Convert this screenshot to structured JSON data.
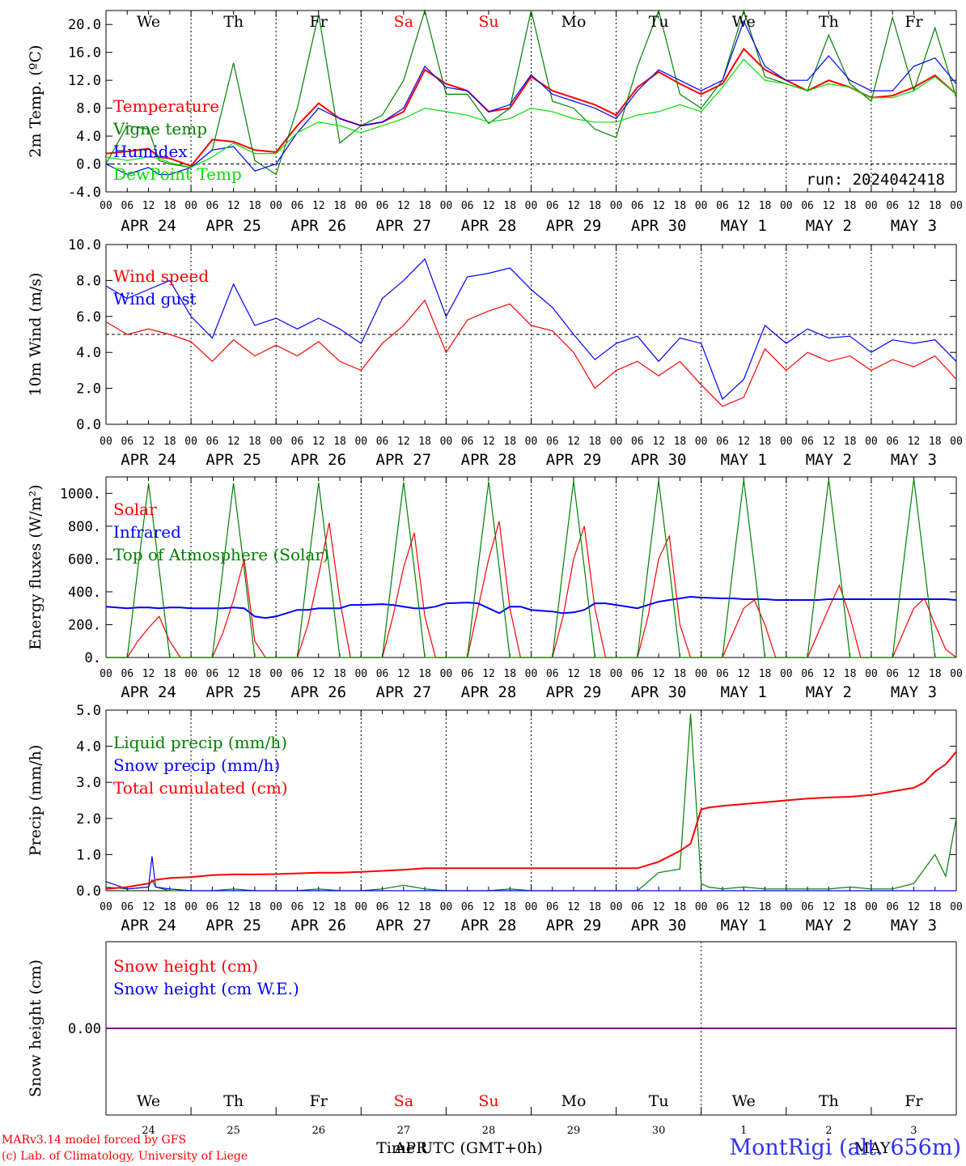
{
  "meteogram": {
    "station_label": "MontRigi (alt. 656m)",
    "run_label": "run: 2024042418",
    "credits": [
      "MARv3.14 model forced by GFS",
      "(c) Lab. of Climatology, University of Liege"
    ],
    "time_axis_label": "Time UTC (GMT+0h)",
    "overlap_label_april": "APR",
    "overlap_label_may": "MAY",
    "colors": {
      "red": "#ff0000",
      "green": "#008000",
      "blue": "#0000ff",
      "lightgreen": "#00e000",
      "purple": "#800080",
      "grid": "#000000"
    },
    "day_names": [
      {
        "name": "We",
        "weekend": false
      },
      {
        "name": "Th",
        "weekend": false
      },
      {
        "name": "Fr",
        "weekend": false
      },
      {
        "name": "Sa",
        "weekend": true
      },
      {
        "name": "Su",
        "weekend": true
      },
      {
        "name": "Mo",
        "weekend": false
      },
      {
        "name": "Tu",
        "weekend": false
      },
      {
        "name": "We",
        "weekend": false
      },
      {
        "name": "Th",
        "weekend": false
      },
      {
        "name": "Fr",
        "weekend": false
      }
    ],
    "date_labels": [
      "APR 24",
      "APR 25",
      "APR 26",
      "APR 27",
      "APR 28",
      "APR 29",
      "APR 30",
      "MAY  1",
      "MAY  2",
      "MAY  3"
    ],
    "day_numbers": [
      "24",
      "25",
      "26",
      "27",
      "28",
      "29",
      "30",
      "1",
      "2",
      "3"
    ],
    "hour_ticks": [
      "00",
      "06",
      "12",
      "18"
    ],
    "end_tick": "00"
  },
  "chart_data": [
    {
      "type": "line",
      "ylabel": "2m Temp. (ºC)",
      "ylim": [
        -4,
        22
      ],
      "yticks": [
        "-4.0",
        "0.0",
        "4.0",
        "8.0",
        "12.0",
        "16.0",
        "20.0"
      ],
      "ytick_values": [
        -4,
        0,
        4,
        8,
        12,
        16,
        20
      ],
      "reference_line": 0,
      "x": [
        0,
        6,
        12,
        15,
        18,
        24,
        30,
        36,
        42,
        48,
        54,
        60,
        66,
        72,
        78,
        84,
        90,
        96,
        102,
        108,
        114,
        120,
        126,
        132,
        138,
        144,
        150,
        156,
        162,
        168,
        174,
        180,
        186,
        192,
        198,
        204,
        210,
        216,
        222,
        228,
        234,
        240
      ],
      "series": [
        {
          "name": "Temperature",
          "color": "#ff0000",
          "values": [
            1.5,
            1.8,
            2.2,
            1.0,
            0.8,
            -0.3,
            3.5,
            3.2,
            2.0,
            1.7,
            5.5,
            8.7,
            6.5,
            5.5,
            6.0,
            7.5,
            13.5,
            11.5,
            10.5,
            7.5,
            8.0,
            12.5,
            10.5,
            9.5,
            8.5,
            7.0,
            11.0,
            13.2,
            11.5,
            10.0,
            11.5,
            16.5,
            13.5,
            12.0,
            10.5,
            12.0,
            11.0,
            9.5,
            9.8,
            11.0,
            12.7,
            10.0
          ]
        },
        {
          "name": "Vigne temp",
          "color": "#008000",
          "values": [
            0.0,
            5.5,
            5.0,
            0.5,
            0.0,
            -0.5,
            2.0,
            14.5,
            0.5,
            -1.5,
            8.0,
            21.5,
            3.0,
            5.5,
            7.0,
            12.0,
            22.0,
            10.0,
            10.0,
            5.8,
            8.0,
            22.0,
            9.0,
            8.0,
            5.0,
            3.8,
            14.0,
            22.0,
            10.0,
            8.0,
            12.0,
            22.0,
            12.5,
            11.5,
            10.5,
            18.5,
            11.5,
            9.0,
            21.0,
            10.5,
            19.5,
            9.5
          ]
        },
        {
          "name": "Humidex",
          "color": "#0000ff",
          "values": [
            0.0,
            -1.5,
            -0.5,
            -1.5,
            -1.5,
            -0.5,
            2.0,
            2.5,
            -1.0,
            0.0,
            4.5,
            8.0,
            6.5,
            5.5,
            6.0,
            8.0,
            14.0,
            11.0,
            10.5,
            7.5,
            8.5,
            12.8,
            10.0,
            9.0,
            8.0,
            6.5,
            10.5,
            13.5,
            12.0,
            10.5,
            12.0,
            20.5,
            14.0,
            12.0,
            12.0,
            15.5,
            12.0,
            10.5,
            10.5,
            14.0,
            15.2,
            11.5
          ]
        },
        {
          "name": "DewPoint Temp",
          "color": "#00e000",
          "values": [
            1.0,
            0.5,
            1.0,
            0.8,
            0.2,
            -0.5,
            1.0,
            3.0,
            1.5,
            1.5,
            4.5,
            6.0,
            5.5,
            4.5,
            5.5,
            6.5,
            8.0,
            7.5,
            7.0,
            6.0,
            6.5,
            8.0,
            7.5,
            6.5,
            6.0,
            6.0,
            7.0,
            7.5,
            8.5,
            7.5,
            11.0,
            15.0,
            12.0,
            11.5,
            10.5,
            11.5,
            11.0,
            9.5,
            9.5,
            10.5,
            12.5,
            10.0
          ]
        }
      ]
    },
    {
      "type": "line",
      "ylabel": "10m Wind (m/s)",
      "ylim": [
        0,
        10
      ],
      "yticks": [
        "0.0",
        "2.0",
        "4.0",
        "6.0",
        "8.0",
        "10.0"
      ],
      "ytick_values": [
        0,
        2,
        4,
        6,
        8,
        10
      ],
      "reference_line": 5,
      "x": [
        0,
        6,
        12,
        18,
        24,
        30,
        36,
        42,
        48,
        54,
        60,
        66,
        72,
        78,
        84,
        90,
        96,
        102,
        108,
        114,
        120,
        126,
        132,
        138,
        144,
        150,
        156,
        162,
        168,
        174,
        180,
        186,
        192,
        198,
        204,
        210,
        216,
        222,
        228,
        234,
        240
      ],
      "series": [
        {
          "name": "Wind speed",
          "color": "#ff0000",
          "values": [
            5.7,
            5.0,
            5.3,
            5.0,
            4.6,
            3.5,
            4.7,
            3.8,
            4.4,
            3.8,
            4.6,
            3.5,
            3.0,
            4.5,
            5.5,
            6.9,
            4.0,
            5.8,
            6.3,
            6.7,
            5.5,
            5.2,
            4.0,
            2.0,
            3.0,
            3.5,
            2.7,
            3.5,
            2.2,
            1.0,
            1.5,
            4.2,
            3.0,
            4.0,
            3.5,
            3.8,
            3.0,
            3.6,
            3.2,
            3.8,
            2.5
          ]
        },
        {
          "name": "Wind gust",
          "color": "#0000ff",
          "values": [
            7.7,
            7.0,
            7.5,
            8.0,
            6.0,
            4.8,
            7.8,
            5.5,
            5.9,
            5.3,
            5.9,
            5.3,
            4.5,
            7.0,
            8.0,
            9.2,
            6.0,
            8.2,
            8.4,
            8.7,
            7.5,
            6.5,
            5.0,
            3.6,
            4.5,
            4.9,
            3.5,
            4.8,
            4.5,
            1.4,
            2.5,
            5.5,
            4.5,
            5.3,
            4.8,
            4.9,
            4.0,
            4.7,
            4.5,
            4.7,
            3.5
          ]
        }
      ]
    },
    {
      "type": "line",
      "ylabel": "Energy fluxes (W/m²)",
      "ylim": [
        0,
        1100
      ],
      "yticks": [
        "0.",
        "200.",
        "400.",
        "600.",
        "800.",
        "1000."
      ],
      "ytick_values": [
        0,
        200,
        400,
        600,
        800,
        1000
      ],
      "x": [
        0,
        6,
        9,
        12,
        15,
        18,
        21,
        24,
        30,
        33,
        36,
        39,
        42,
        45,
        48,
        54,
        57,
        60,
        63,
        66,
        69,
        72,
        78,
        81,
        84,
        87,
        90,
        93,
        96,
        102,
        105,
        108,
        111,
        114,
        117,
        120,
        126,
        129,
        132,
        135,
        138,
        141,
        144,
        150,
        153,
        156,
        159,
        162,
        165,
        168,
        174,
        177,
        180,
        183,
        186,
        189,
        192,
        198,
        201,
        204,
        207,
        210,
        213,
        216,
        222,
        225,
        228,
        231,
        234,
        237,
        240
      ],
      "series": [
        {
          "name": "Solar",
          "color": "#ff0000",
          "values": [
            0,
            0,
            100,
            180,
            250,
            100,
            0,
            0,
            0,
            150,
            350,
            600,
            100,
            0,
            0,
            0,
            200,
            500,
            820,
            350,
            0,
            0,
            0,
            250,
            550,
            760,
            250,
            0,
            0,
            0,
            300,
            600,
            830,
            300,
            0,
            0,
            0,
            250,
            600,
            800,
            300,
            0,
            0,
            0,
            250,
            600,
            740,
            200,
            0,
            0,
            0,
            150,
            300,
            350,
            200,
            0,
            0,
            0,
            150,
            300,
            440,
            250,
            0,
            0,
            0,
            150,
            300,
            360,
            200,
            50,
            0
          ]
        },
        {
          "name": "Infrared",
          "color": "#0000ff",
          "values": [
            310,
            300,
            305,
            305,
            300,
            305,
            305,
            300,
            300,
            300,
            305,
            300,
            250,
            240,
            250,
            290,
            290,
            300,
            300,
            300,
            320,
            320,
            325,
            320,
            310,
            300,
            300,
            310,
            330,
            335,
            330,
            300,
            270,
            310,
            310,
            290,
            280,
            270,
            275,
            290,
            330,
            330,
            320,
            300,
            320,
            340,
            350,
            360,
            370,
            365,
            360,
            360,
            355,
            355,
            355,
            350,
            350,
            350,
            350,
            355,
            355,
            355,
            355,
            355,
            355,
            355,
            355,
            355,
            355,
            355,
            350
          ]
        },
        {
          "name": "Top of Atmosphere (Solar)",
          "color": "#008000",
          "values": [
            0,
            0,
            540,
            1060,
            540,
            0,
            0,
            0,
            0,
            540,
            1062,
            540,
            0,
            0,
            0,
            0,
            540,
            1065,
            540,
            0,
            0,
            0,
            0,
            545,
            1068,
            545,
            0,
            0,
            0,
            0,
            545,
            1072,
            545,
            0,
            0,
            0,
            0,
            548,
            1075,
            548,
            0,
            0,
            0,
            0,
            550,
            1078,
            550,
            0,
            0,
            0,
            0,
            552,
            1082,
            552,
            0,
            0,
            0,
            0,
            555,
            1085,
            555,
            0,
            0,
            0,
            0,
            558,
            1088,
            558,
            0,
            0,
            0
          ]
        }
      ]
    },
    {
      "type": "line",
      "ylabel": "Precip (mm/h)",
      "ylim": [
        0,
        5
      ],
      "yticks": [
        "0.0",
        "1.0",
        "2.0",
        "3.0",
        "4.0",
        "5.0"
      ],
      "ytick_values": [
        0,
        1,
        2,
        3,
        4,
        5
      ],
      "x": [
        0,
        6,
        12,
        13,
        14,
        18,
        24,
        30,
        36,
        42,
        48,
        54,
        60,
        66,
        72,
        78,
        84,
        90,
        96,
        102,
        108,
        114,
        120,
        126,
        132,
        138,
        144,
        150,
        156,
        162,
        165,
        168,
        170,
        174,
        180,
        186,
        192,
        198,
        204,
        210,
        216,
        222,
        228,
        231,
        234,
        237,
        240
      ],
      "series": [
        {
          "name": "Liquid precip (mm/h)",
          "color": "#008000",
          "values": [
            0.1,
            0.05,
            0.1,
            0.3,
            0.1,
            0.0,
            0.0,
            0.0,
            0.05,
            0.0,
            0.0,
            0.0,
            0.05,
            0.0,
            0.0,
            0.05,
            0.15,
            0.05,
            0.0,
            0.0,
            0.0,
            0.05,
            0.0,
            0.0,
            0.0,
            0.0,
            0.0,
            0.0,
            0.5,
            0.6,
            4.9,
            0.2,
            0.1,
            0.05,
            0.1,
            0.05,
            0.05,
            0.05,
            0.05,
            0.1,
            0.05,
            0.05,
            0.2,
            0.6,
            1.0,
            0.4,
            2.0
          ]
        },
        {
          "name": "Snow precip (mm/h)",
          "color": "#0000ff",
          "values": [
            0.25,
            0.05,
            0.1,
            0.95,
            0.1,
            0.05,
            0.0,
            0.0,
            0.0,
            0.0,
            0.0,
            0.0,
            0.0,
            0.0,
            0.0,
            0.0,
            0.0,
            0.0,
            0.0,
            0.0,
            0.0,
            0.0,
            0.0,
            0.0,
            0.0,
            0.0,
            0.0,
            0.0,
            0.0,
            0.0,
            0.0,
            0.0,
            0.0,
            0.0,
            0.0,
            0.0,
            0.0,
            0.0,
            0.0,
            0.0,
            0.0,
            0.0,
            0.0,
            0.0,
            0.0,
            0.0,
            0.0
          ]
        },
        {
          "name": "Total cumulated (cm)",
          "color": "#ff0000",
          "values": [
            0.05,
            0.1,
            0.2,
            0.25,
            0.3,
            0.35,
            0.38,
            0.43,
            0.45,
            0.45,
            0.46,
            0.48,
            0.5,
            0.5,
            0.52,
            0.55,
            0.58,
            0.62,
            0.62,
            0.62,
            0.62,
            0.62,
            0.62,
            0.62,
            0.62,
            0.62,
            0.62,
            0.62,
            0.8,
            1.1,
            1.3,
            2.25,
            2.3,
            2.35,
            2.4,
            2.45,
            2.5,
            2.55,
            2.58,
            2.6,
            2.65,
            2.75,
            2.85,
            3.0,
            3.3,
            3.5,
            3.85
          ]
        }
      ]
    },
    {
      "type": "line",
      "ylabel": "Snow height (cm)",
      "ylim": [
        -1,
        1
      ],
      "yticks": [
        "0.00"
      ],
      "ytick_values": [
        0
      ],
      "x": [
        0,
        240
      ],
      "series": [
        {
          "name": "Snow height (cm)",
          "color": "#ff0000",
          "values": [
            0,
            0
          ]
        },
        {
          "name": "Snow height (cm W.E.)",
          "color": "#0000ff",
          "values": [
            0,
            0
          ]
        }
      ]
    }
  ]
}
